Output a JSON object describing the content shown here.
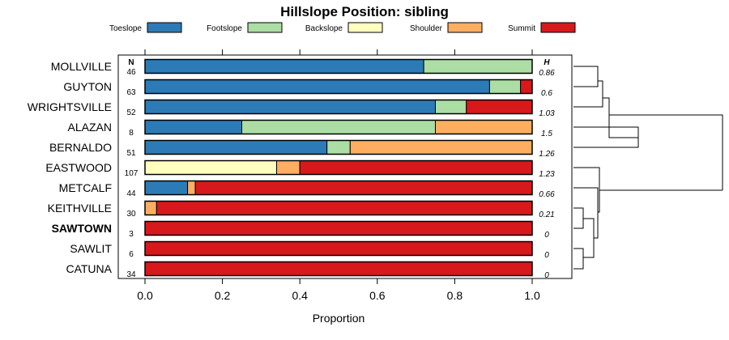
{
  "chart_data": {
    "type": "bar",
    "stacked": true,
    "orientation": "horizontal",
    "title": "Hillslope Position: sibling",
    "xlabel": "Proportion",
    "xlim": [
      0,
      1
    ],
    "xticks": [
      "0.0",
      "0.2",
      "0.4",
      "0.6",
      "0.8",
      "1.0"
    ],
    "legend_position": "top",
    "n_header": "N",
    "h_header": "H",
    "series": [
      {
        "name": "Toeslope",
        "color": "#2c7bb6"
      },
      {
        "name": "Footslope",
        "color": "#abdda4"
      },
      {
        "name": "Backslope",
        "color": "#ffffbf"
      },
      {
        "name": "Shoulder",
        "color": "#fdae61"
      },
      {
        "name": "Summit",
        "color": "#d7191c"
      }
    ],
    "rows": [
      {
        "label": "MOLLVILLE",
        "n": "46",
        "h": "0.86",
        "bold": false,
        "values": [
          0.72,
          0.28,
          0,
          0,
          0
        ]
      },
      {
        "label": "GUYTON",
        "n": "63",
        "h": "0.6",
        "bold": false,
        "values": [
          0.89,
          0.08,
          0,
          0,
          0.03
        ]
      },
      {
        "label": "WRIGHTSVILLE",
        "n": "52",
        "h": "1.03",
        "bold": false,
        "values": [
          0.75,
          0.08,
          0,
          0,
          0.17
        ]
      },
      {
        "label": "ALAZAN",
        "n": "8",
        "h": "1.5",
        "bold": false,
        "values": [
          0.25,
          0.5,
          0,
          0.25,
          0
        ]
      },
      {
        "label": "BERNALDO",
        "n": "51",
        "h": "1.26",
        "bold": false,
        "values": [
          0.47,
          0.06,
          0,
          0.47,
          0
        ]
      },
      {
        "label": "EASTWOOD",
        "n": "107",
        "h": "1.23",
        "bold": false,
        "values": [
          0,
          0,
          0.34,
          0.06,
          0.6
        ]
      },
      {
        "label": "METCALF",
        "n": "44",
        "h": "0.66",
        "bold": false,
        "values": [
          0.11,
          0,
          0,
          0.02,
          0.87
        ]
      },
      {
        "label": "KEITHVILLE",
        "n": "30",
        "h": "0.21",
        "bold": false,
        "values": [
          0,
          0,
          0,
          0.03,
          0.97
        ]
      },
      {
        "label": "SAWTOWN",
        "n": "3",
        "h": "0",
        "bold": true,
        "values": [
          0,
          0,
          0,
          0,
          1.0
        ]
      },
      {
        "label": "SAWLIT",
        "n": "6",
        "h": "0",
        "bold": false,
        "values": [
          0,
          0,
          0,
          0,
          1.0
        ]
      },
      {
        "label": "CATUNA",
        "n": "34",
        "h": "0",
        "bold": false,
        "values": [
          0,
          0,
          0,
          0,
          1.0
        ]
      }
    ]
  }
}
